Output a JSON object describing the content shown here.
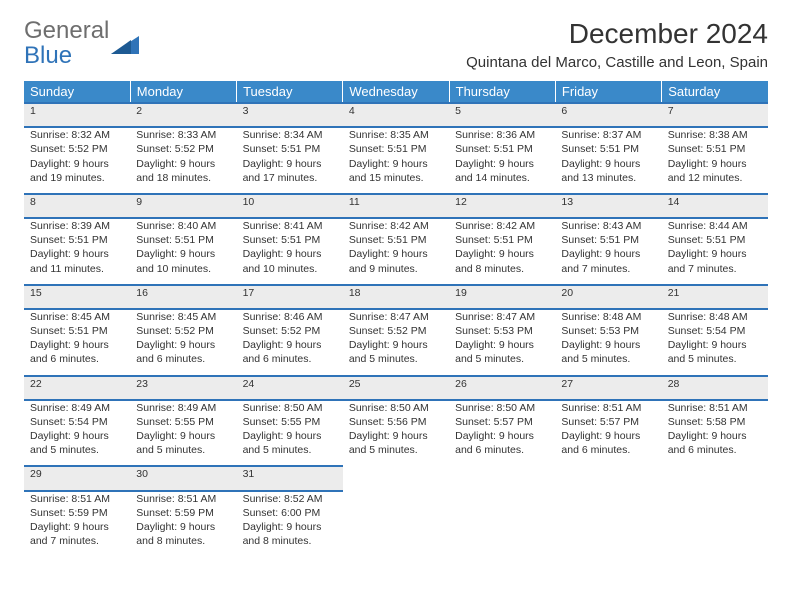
{
  "logo": {
    "text1": "General",
    "text2": "Blue"
  },
  "title": "December 2024",
  "subtitle": "Quintana del Marco, Castille and Leon, Spain",
  "colors": {
    "header_bg": "#3a89c9",
    "header_text": "#ffffff",
    "row_accent": "#2f73b8",
    "daynum_bg": "#ececec",
    "text": "#333333",
    "logo_gray": "#6e6e6e",
    "logo_blue": "#2f73b8"
  },
  "weekdays": [
    "Sunday",
    "Monday",
    "Tuesday",
    "Wednesday",
    "Thursday",
    "Friday",
    "Saturday"
  ],
  "weeks": [
    [
      {
        "n": "1",
        "sunrise": "8:32 AM",
        "sunset": "5:52 PM",
        "daylight": "9 hours and 19 minutes."
      },
      {
        "n": "2",
        "sunrise": "8:33 AM",
        "sunset": "5:52 PM",
        "daylight": "9 hours and 18 minutes."
      },
      {
        "n": "3",
        "sunrise": "8:34 AM",
        "sunset": "5:51 PM",
        "daylight": "9 hours and 17 minutes."
      },
      {
        "n": "4",
        "sunrise": "8:35 AM",
        "sunset": "5:51 PM",
        "daylight": "9 hours and 15 minutes."
      },
      {
        "n": "5",
        "sunrise": "8:36 AM",
        "sunset": "5:51 PM",
        "daylight": "9 hours and 14 minutes."
      },
      {
        "n": "6",
        "sunrise": "8:37 AM",
        "sunset": "5:51 PM",
        "daylight": "9 hours and 13 minutes."
      },
      {
        "n": "7",
        "sunrise": "8:38 AM",
        "sunset": "5:51 PM",
        "daylight": "9 hours and 12 minutes."
      }
    ],
    [
      {
        "n": "8",
        "sunrise": "8:39 AM",
        "sunset": "5:51 PM",
        "daylight": "9 hours and 11 minutes."
      },
      {
        "n": "9",
        "sunrise": "8:40 AM",
        "sunset": "5:51 PM",
        "daylight": "9 hours and 10 minutes."
      },
      {
        "n": "10",
        "sunrise": "8:41 AM",
        "sunset": "5:51 PM",
        "daylight": "9 hours and 10 minutes."
      },
      {
        "n": "11",
        "sunrise": "8:42 AM",
        "sunset": "5:51 PM",
        "daylight": "9 hours and 9 minutes."
      },
      {
        "n": "12",
        "sunrise": "8:42 AM",
        "sunset": "5:51 PM",
        "daylight": "9 hours and 8 minutes."
      },
      {
        "n": "13",
        "sunrise": "8:43 AM",
        "sunset": "5:51 PM",
        "daylight": "9 hours and 7 minutes."
      },
      {
        "n": "14",
        "sunrise": "8:44 AM",
        "sunset": "5:51 PM",
        "daylight": "9 hours and 7 minutes."
      }
    ],
    [
      {
        "n": "15",
        "sunrise": "8:45 AM",
        "sunset": "5:51 PM",
        "daylight": "9 hours and 6 minutes."
      },
      {
        "n": "16",
        "sunrise": "8:45 AM",
        "sunset": "5:52 PM",
        "daylight": "9 hours and 6 minutes."
      },
      {
        "n": "17",
        "sunrise": "8:46 AM",
        "sunset": "5:52 PM",
        "daylight": "9 hours and 6 minutes."
      },
      {
        "n": "18",
        "sunrise": "8:47 AM",
        "sunset": "5:52 PM",
        "daylight": "9 hours and 5 minutes."
      },
      {
        "n": "19",
        "sunrise": "8:47 AM",
        "sunset": "5:53 PM",
        "daylight": "9 hours and 5 minutes."
      },
      {
        "n": "20",
        "sunrise": "8:48 AM",
        "sunset": "5:53 PM",
        "daylight": "9 hours and 5 minutes."
      },
      {
        "n": "21",
        "sunrise": "8:48 AM",
        "sunset": "5:54 PM",
        "daylight": "9 hours and 5 minutes."
      }
    ],
    [
      {
        "n": "22",
        "sunrise": "8:49 AM",
        "sunset": "5:54 PM",
        "daylight": "9 hours and 5 minutes."
      },
      {
        "n": "23",
        "sunrise": "8:49 AM",
        "sunset": "5:55 PM",
        "daylight": "9 hours and 5 minutes."
      },
      {
        "n": "24",
        "sunrise": "8:50 AM",
        "sunset": "5:55 PM",
        "daylight": "9 hours and 5 minutes."
      },
      {
        "n": "25",
        "sunrise": "8:50 AM",
        "sunset": "5:56 PM",
        "daylight": "9 hours and 5 minutes."
      },
      {
        "n": "26",
        "sunrise": "8:50 AM",
        "sunset": "5:57 PM",
        "daylight": "9 hours and 6 minutes."
      },
      {
        "n": "27",
        "sunrise": "8:51 AM",
        "sunset": "5:57 PM",
        "daylight": "9 hours and 6 minutes."
      },
      {
        "n": "28",
        "sunrise": "8:51 AM",
        "sunset": "5:58 PM",
        "daylight": "9 hours and 6 minutes."
      }
    ],
    [
      {
        "n": "29",
        "sunrise": "8:51 AM",
        "sunset": "5:59 PM",
        "daylight": "9 hours and 7 minutes."
      },
      {
        "n": "30",
        "sunrise": "8:51 AM",
        "sunset": "5:59 PM",
        "daylight": "9 hours and 8 minutes."
      },
      {
        "n": "31",
        "sunrise": "8:52 AM",
        "sunset": "6:00 PM",
        "daylight": "9 hours and 8 minutes."
      },
      null,
      null,
      null,
      null
    ]
  ],
  "labels": {
    "sunrise": "Sunrise:",
    "sunset": "Sunset:",
    "daylight": "Daylight:"
  }
}
